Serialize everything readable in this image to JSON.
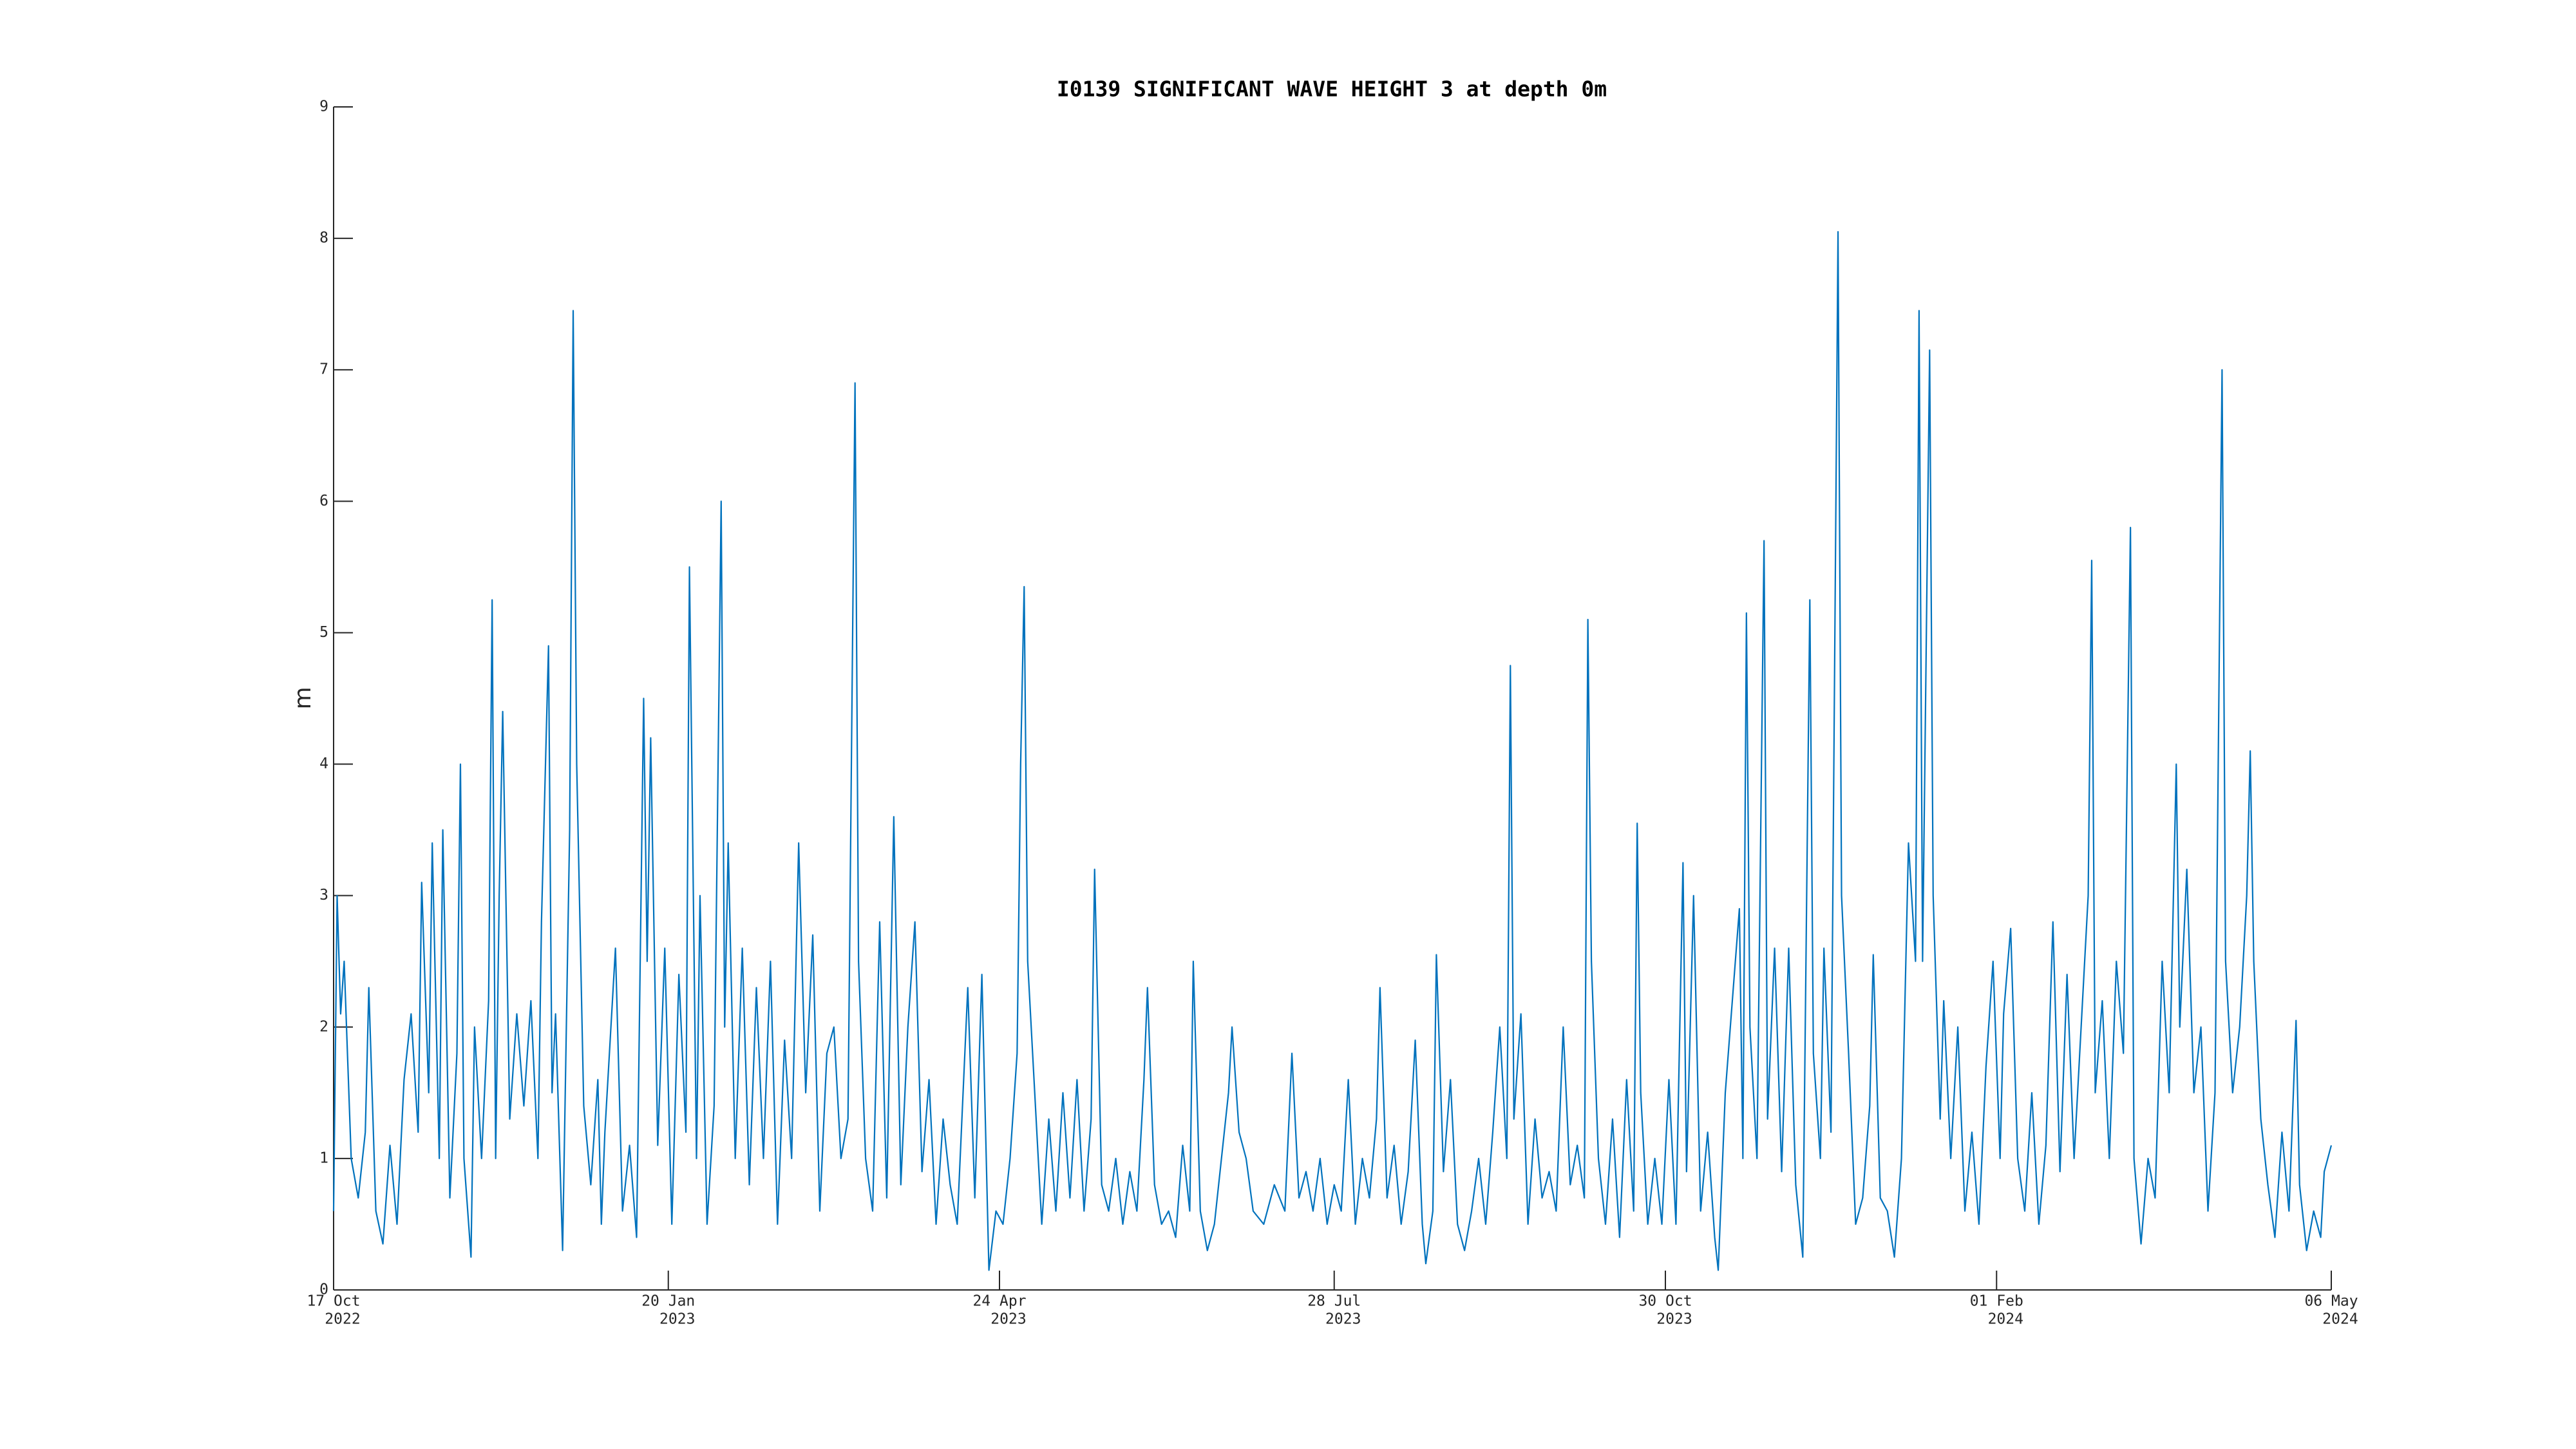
{
  "chart_data": {
    "type": "line",
    "title": "I0139 SIGNIFICANT WAVE HEIGHT 3 at depth 0m",
    "ylabel": "m",
    "xlim": [
      "2022-10-17",
      "2024-05-06"
    ],
    "xticks": [
      {
        "value": "2022-10-17",
        "label": [
          "17 Oct",
          "2022"
        ]
      },
      {
        "value": "2023-01-20",
        "label": [
          "20 Jan",
          "2023"
        ]
      },
      {
        "value": "2023-04-24",
        "label": [
          "24 Apr",
          "2023"
        ]
      },
      {
        "value": "2023-07-28",
        "label": [
          "28 Jul",
          "2023"
        ]
      },
      {
        "value": "2023-10-30",
        "label": [
          "30 Oct",
          "2023"
        ]
      },
      {
        "value": "2024-02-01",
        "label": [
          "01 Feb",
          "2024"
        ]
      },
      {
        "value": "2024-05-06",
        "label": [
          "06 May",
          "2024"
        ]
      }
    ],
    "ylim": [
      0,
      9
    ],
    "yticks": [
      0,
      1,
      2,
      3,
      4,
      5,
      6,
      7,
      8,
      9
    ],
    "grid": false,
    "series": [
      {
        "color": "#0072bd",
        "x": [
          "2022-10-17",
          "2022-10-18",
          "2022-10-19",
          "2022-10-20",
          "2022-10-22",
          "2022-10-24",
          "2022-10-26",
          "2022-10-27",
          "2022-10-29",
          "2022-10-31",
          "2022-11-02",
          "2022-11-04",
          "2022-11-06",
          "2022-11-08",
          "2022-11-10",
          "2022-11-11",
          "2022-11-13",
          "2022-11-14",
          "2022-11-16",
          "2022-11-17",
          "2022-11-19",
          "2022-11-21",
          "2022-11-22",
          "2022-11-23",
          "2022-11-25",
          "2022-11-26",
          "2022-11-28",
          "2022-11-30",
          "2022-12-01",
          "2022-12-02",
          "2022-12-03",
          "2022-12-04",
          "2022-12-06",
          "2022-12-08",
          "2022-12-10",
          "2022-12-12",
          "2022-12-14",
          "2022-12-15",
          "2022-12-17",
          "2022-12-18",
          "2022-12-19",
          "2022-12-21",
          "2022-12-23",
          "2022-12-24",
          "2022-12-25",
          "2022-12-27",
          "2022-12-29",
          "2022-12-31",
          "2023-01-01",
          "2023-01-02",
          "2023-01-05",
          "2023-01-07",
          "2023-01-09",
          "2023-01-11",
          "2023-01-13",
          "2023-01-14",
          "2023-01-15",
          "2023-01-17",
          "2023-01-19",
          "2023-01-21",
          "2023-01-23",
          "2023-01-25",
          "2023-01-26",
          "2023-01-28",
          "2023-01-29",
          "2023-01-31",
          "2023-02-02",
          "2023-02-04",
          "2023-02-05",
          "2023-02-06",
          "2023-02-08",
          "2023-02-10",
          "2023-02-12",
          "2023-02-14",
          "2023-02-16",
          "2023-02-18",
          "2023-02-20",
          "2023-02-22",
          "2023-02-24",
          "2023-02-26",
          "2023-02-28",
          "2023-03-02",
          "2023-03-04",
          "2023-03-06",
          "2023-03-08",
          "2023-03-10",
          "2023-03-12",
          "2023-03-14",
          "2023-03-15",
          "2023-03-17",
          "2023-03-19",
          "2023-03-21",
          "2023-03-23",
          "2023-03-25",
          "2023-03-27",
          "2023-03-29",
          "2023-03-31",
          "2023-04-02",
          "2023-04-04",
          "2023-04-06",
          "2023-04-08",
          "2023-04-10",
          "2023-04-12",
          "2023-04-15",
          "2023-04-17",
          "2023-04-19",
          "2023-04-21",
          "2023-04-23",
          "2023-04-25",
          "2023-04-27",
          "2023-04-29",
          "2023-04-30",
          "2023-05-01",
          "2023-05-02",
          "2023-05-04",
          "2023-05-06",
          "2023-05-08",
          "2023-05-10",
          "2023-05-12",
          "2023-05-14",
          "2023-05-16",
          "2023-05-18",
          "2023-05-20",
          "2023-05-21",
          "2023-05-23",
          "2023-05-25",
          "2023-05-27",
          "2023-05-29",
          "2023-05-31",
          "2023-06-02",
          "2023-06-04",
          "2023-06-05",
          "2023-06-07",
          "2023-06-09",
          "2023-06-11",
          "2023-06-13",
          "2023-06-15",
          "2023-06-17",
          "2023-06-18",
          "2023-06-20",
          "2023-06-22",
          "2023-06-24",
          "2023-06-26",
          "2023-06-28",
          "2023-06-29",
          "2023-07-01",
          "2023-07-03",
          "2023-07-05",
          "2023-07-08",
          "2023-07-11",
          "2023-07-14",
          "2023-07-16",
          "2023-07-18",
          "2023-07-20",
          "2023-07-22",
          "2023-07-24",
          "2023-07-26",
          "2023-07-28",
          "2023-07-30",
          "2023-08-01",
          "2023-08-03",
          "2023-08-05",
          "2023-08-07",
          "2023-08-09",
          "2023-08-10",
          "2023-08-12",
          "2023-08-14",
          "2023-08-16",
          "2023-08-18",
          "2023-08-20",
          "2023-08-22",
          "2023-08-23",
          "2023-08-25",
          "2023-08-26",
          "2023-08-28",
          "2023-08-30",
          "2023-09-01",
          "2023-09-03",
          "2023-09-05",
          "2023-09-07",
          "2023-09-09",
          "2023-09-11",
          "2023-09-13",
          "2023-09-15",
          "2023-09-16",
          "2023-09-17",
          "2023-09-19",
          "2023-09-21",
          "2023-09-23",
          "2023-09-25",
          "2023-09-27",
          "2023-09-29",
          "2023-10-01",
          "2023-10-03",
          "2023-10-05",
          "2023-10-07",
          "2023-10-08",
          "2023-10-09",
          "2023-10-11",
          "2023-10-13",
          "2023-10-15",
          "2023-10-17",
          "2023-10-19",
          "2023-10-21",
          "2023-10-22",
          "2023-10-23",
          "2023-10-25",
          "2023-10-27",
          "2023-10-29",
          "2023-10-31",
          "2023-11-02",
          "2023-11-04",
          "2023-11-05",
          "2023-11-07",
          "2023-11-09",
          "2023-11-11",
          "2023-11-13",
          "2023-11-14",
          "2023-11-16",
          "2023-11-18",
          "2023-11-20",
          "2023-11-21",
          "2023-11-22",
          "2023-11-23",
          "2023-11-25",
          "2023-11-27",
          "2023-11-28",
          "2023-11-30",
          "2023-12-02",
          "2023-12-04",
          "2023-12-06",
          "2023-12-08",
          "2023-12-10",
          "2023-12-11",
          "2023-12-13",
          "2023-12-14",
          "2023-12-16",
          "2023-12-18",
          "2023-12-19",
          "2023-12-21",
          "2023-12-23",
          "2023-12-25",
          "2023-12-27",
          "2023-12-28",
          "2023-12-30",
          "2024-01-01",
          "2024-01-03",
          "2024-01-05",
          "2024-01-07",
          "2024-01-09",
          "2024-01-10",
          "2024-01-11",
          "2024-01-13",
          "2024-01-14",
          "2024-01-16",
          "2024-01-17",
          "2024-01-19",
          "2024-01-21",
          "2024-01-23",
          "2024-01-25",
          "2024-01-27",
          "2024-01-29",
          "2024-01-31",
          "2024-02-02",
          "2024-02-03",
          "2024-02-05",
          "2024-02-07",
          "2024-02-09",
          "2024-02-11",
          "2024-02-13",
          "2024-02-15",
          "2024-02-17",
          "2024-02-19",
          "2024-02-21",
          "2024-02-23",
          "2024-02-25",
          "2024-02-27",
          "2024-02-28",
          "2024-02-29",
          "2024-03-02",
          "2024-03-04",
          "2024-03-06",
          "2024-03-08",
          "2024-03-10",
          "2024-03-11",
          "2024-03-13",
          "2024-03-15",
          "2024-03-17",
          "2024-03-19",
          "2024-03-21",
          "2024-03-23",
          "2024-03-24",
          "2024-03-26",
          "2024-03-28",
          "2024-03-30",
          "2024-04-01",
          "2024-04-03",
          "2024-04-05",
          "2024-04-06",
          "2024-04-08",
          "2024-04-10",
          "2024-04-12",
          "2024-04-13",
          "2024-04-14",
          "2024-04-16",
          "2024-04-18",
          "2024-04-20",
          "2024-04-22",
          "2024-04-24",
          "2024-04-26",
          "2024-04-27",
          "2024-04-29",
          "2024-05-01",
          "2024-05-03",
          "2024-05-04",
          "2024-05-06"
        ],
        "values": [
          0.6,
          3.0,
          2.1,
          2.5,
          1.0,
          0.7,
          1.2,
          2.3,
          0.6,
          0.35,
          1.1,
          0.5,
          1.6,
          2.1,
          1.2,
          3.1,
          1.5,
          3.4,
          1.0,
          3.5,
          0.7,
          1.8,
          4.0,
          1.0,
          0.25,
          2.0,
          1.0,
          2.2,
          5.25,
          1.0,
          3.0,
          4.4,
          1.3,
          2.1,
          1.4,
          2.2,
          1.0,
          2.8,
          4.9,
          1.5,
          2.1,
          0.3,
          3.5,
          7.45,
          4.0,
          1.4,
          0.8,
          1.6,
          0.5,
          1.2,
          2.6,
          0.6,
          1.1,
          0.4,
          4.5,
          2.5,
          4.2,
          1.1,
          2.6,
          0.5,
          2.4,
          1.2,
          5.5,
          1.0,
          3.0,
          0.5,
          1.4,
          6.0,
          2.0,
          3.4,
          1.0,
          2.6,
          0.8,
          2.3,
          1.0,
          2.5,
          0.5,
          1.9,
          1.0,
          3.4,
          1.5,
          2.7,
          0.6,
          1.8,
          2.0,
          1.0,
          1.3,
          6.9,
          2.5,
          1.0,
          0.6,
          2.8,
          0.7,
          3.6,
          0.8,
          2.0,
          2.8,
          0.9,
          1.6,
          0.5,
          1.3,
          0.8,
          0.5,
          2.3,
          0.7,
          2.4,
          0.15,
          0.6,
          0.5,
          1.0,
          1.8,
          4.0,
          5.35,
          2.5,
          1.5,
          0.5,
          1.3,
          0.6,
          1.5,
          0.7,
          1.6,
          0.6,
          1.3,
          3.2,
          0.8,
          0.6,
          1.0,
          0.5,
          0.9,
          0.6,
          1.6,
          2.3,
          0.8,
          0.5,
          0.6,
          0.4,
          1.1,
          0.6,
          2.5,
          0.6,
          0.3,
          0.5,
          1.0,
          1.5,
          2.0,
          1.2,
          1.0,
          0.6,
          0.5,
          0.8,
          0.6,
          1.8,
          0.7,
          0.9,
          0.6,
          1.0,
          0.5,
          0.8,
          0.6,
          1.6,
          0.5,
          1.0,
          0.7,
          1.3,
          2.3,
          0.7,
          1.1,
          0.5,
          0.9,
          1.9,
          0.5,
          0.2,
          0.6,
          2.55,
          0.9,
          1.6,
          0.5,
          0.3,
          0.6,
          1.0,
          0.5,
          1.2,
          2.0,
          1.0,
          4.75,
          1.3,
          2.1,
          0.5,
          1.3,
          0.7,
          0.9,
          0.6,
          2.0,
          0.8,
          1.1,
          0.7,
          5.1,
          2.5,
          1.0,
          0.5,
          1.3,
          0.4,
          1.6,
          0.6,
          3.55,
          1.5,
          0.5,
          1.0,
          0.5,
          1.6,
          0.5,
          3.25,
          0.9,
          3.0,
          0.6,
          1.2,
          0.4,
          0.15,
          1.5,
          2.2,
          2.9,
          1.0,
          5.15,
          2.0,
          1.0,
          5.7,
          1.3,
          2.6,
          0.9,
          2.6,
          0.8,
          0.25,
          5.25,
          1.8,
          1.0,
          2.6,
          1.2,
          8.05,
          3.0,
          1.8,
          0.5,
          0.7,
          1.4,
          2.55,
          0.7,
          0.6,
          0.25,
          1.0,
          3.4,
          2.5,
          7.45,
          2.5,
          7.15,
          3.0,
          1.3,
          2.2,
          1.0,
          2.0,
          0.6,
          1.2,
          0.5,
          1.7,
          2.5,
          1.0,
          2.1,
          2.75,
          1.0,
          0.6,
          1.5,
          0.5,
          1.1,
          2.8,
          0.9,
          2.4,
          1.0,
          2.0,
          3.0,
          5.55,
          1.5,
          2.2,
          1.0,
          2.5,
          1.8,
          5.8,
          1.0,
          0.35,
          1.0,
          0.7,
          2.5,
          1.5,
          4.0,
          2.0,
          3.2,
          1.5,
          2.0,
          0.6,
          1.5,
          7.0,
          2.5,
          1.5,
          2.0,
          3.0,
          4.1,
          2.5,
          1.3,
          0.8,
          0.4,
          1.2,
          0.6,
          2.05,
          0.8,
          0.3,
          0.6,
          0.4,
          0.9,
          1.1
        ]
      }
    ]
  }
}
